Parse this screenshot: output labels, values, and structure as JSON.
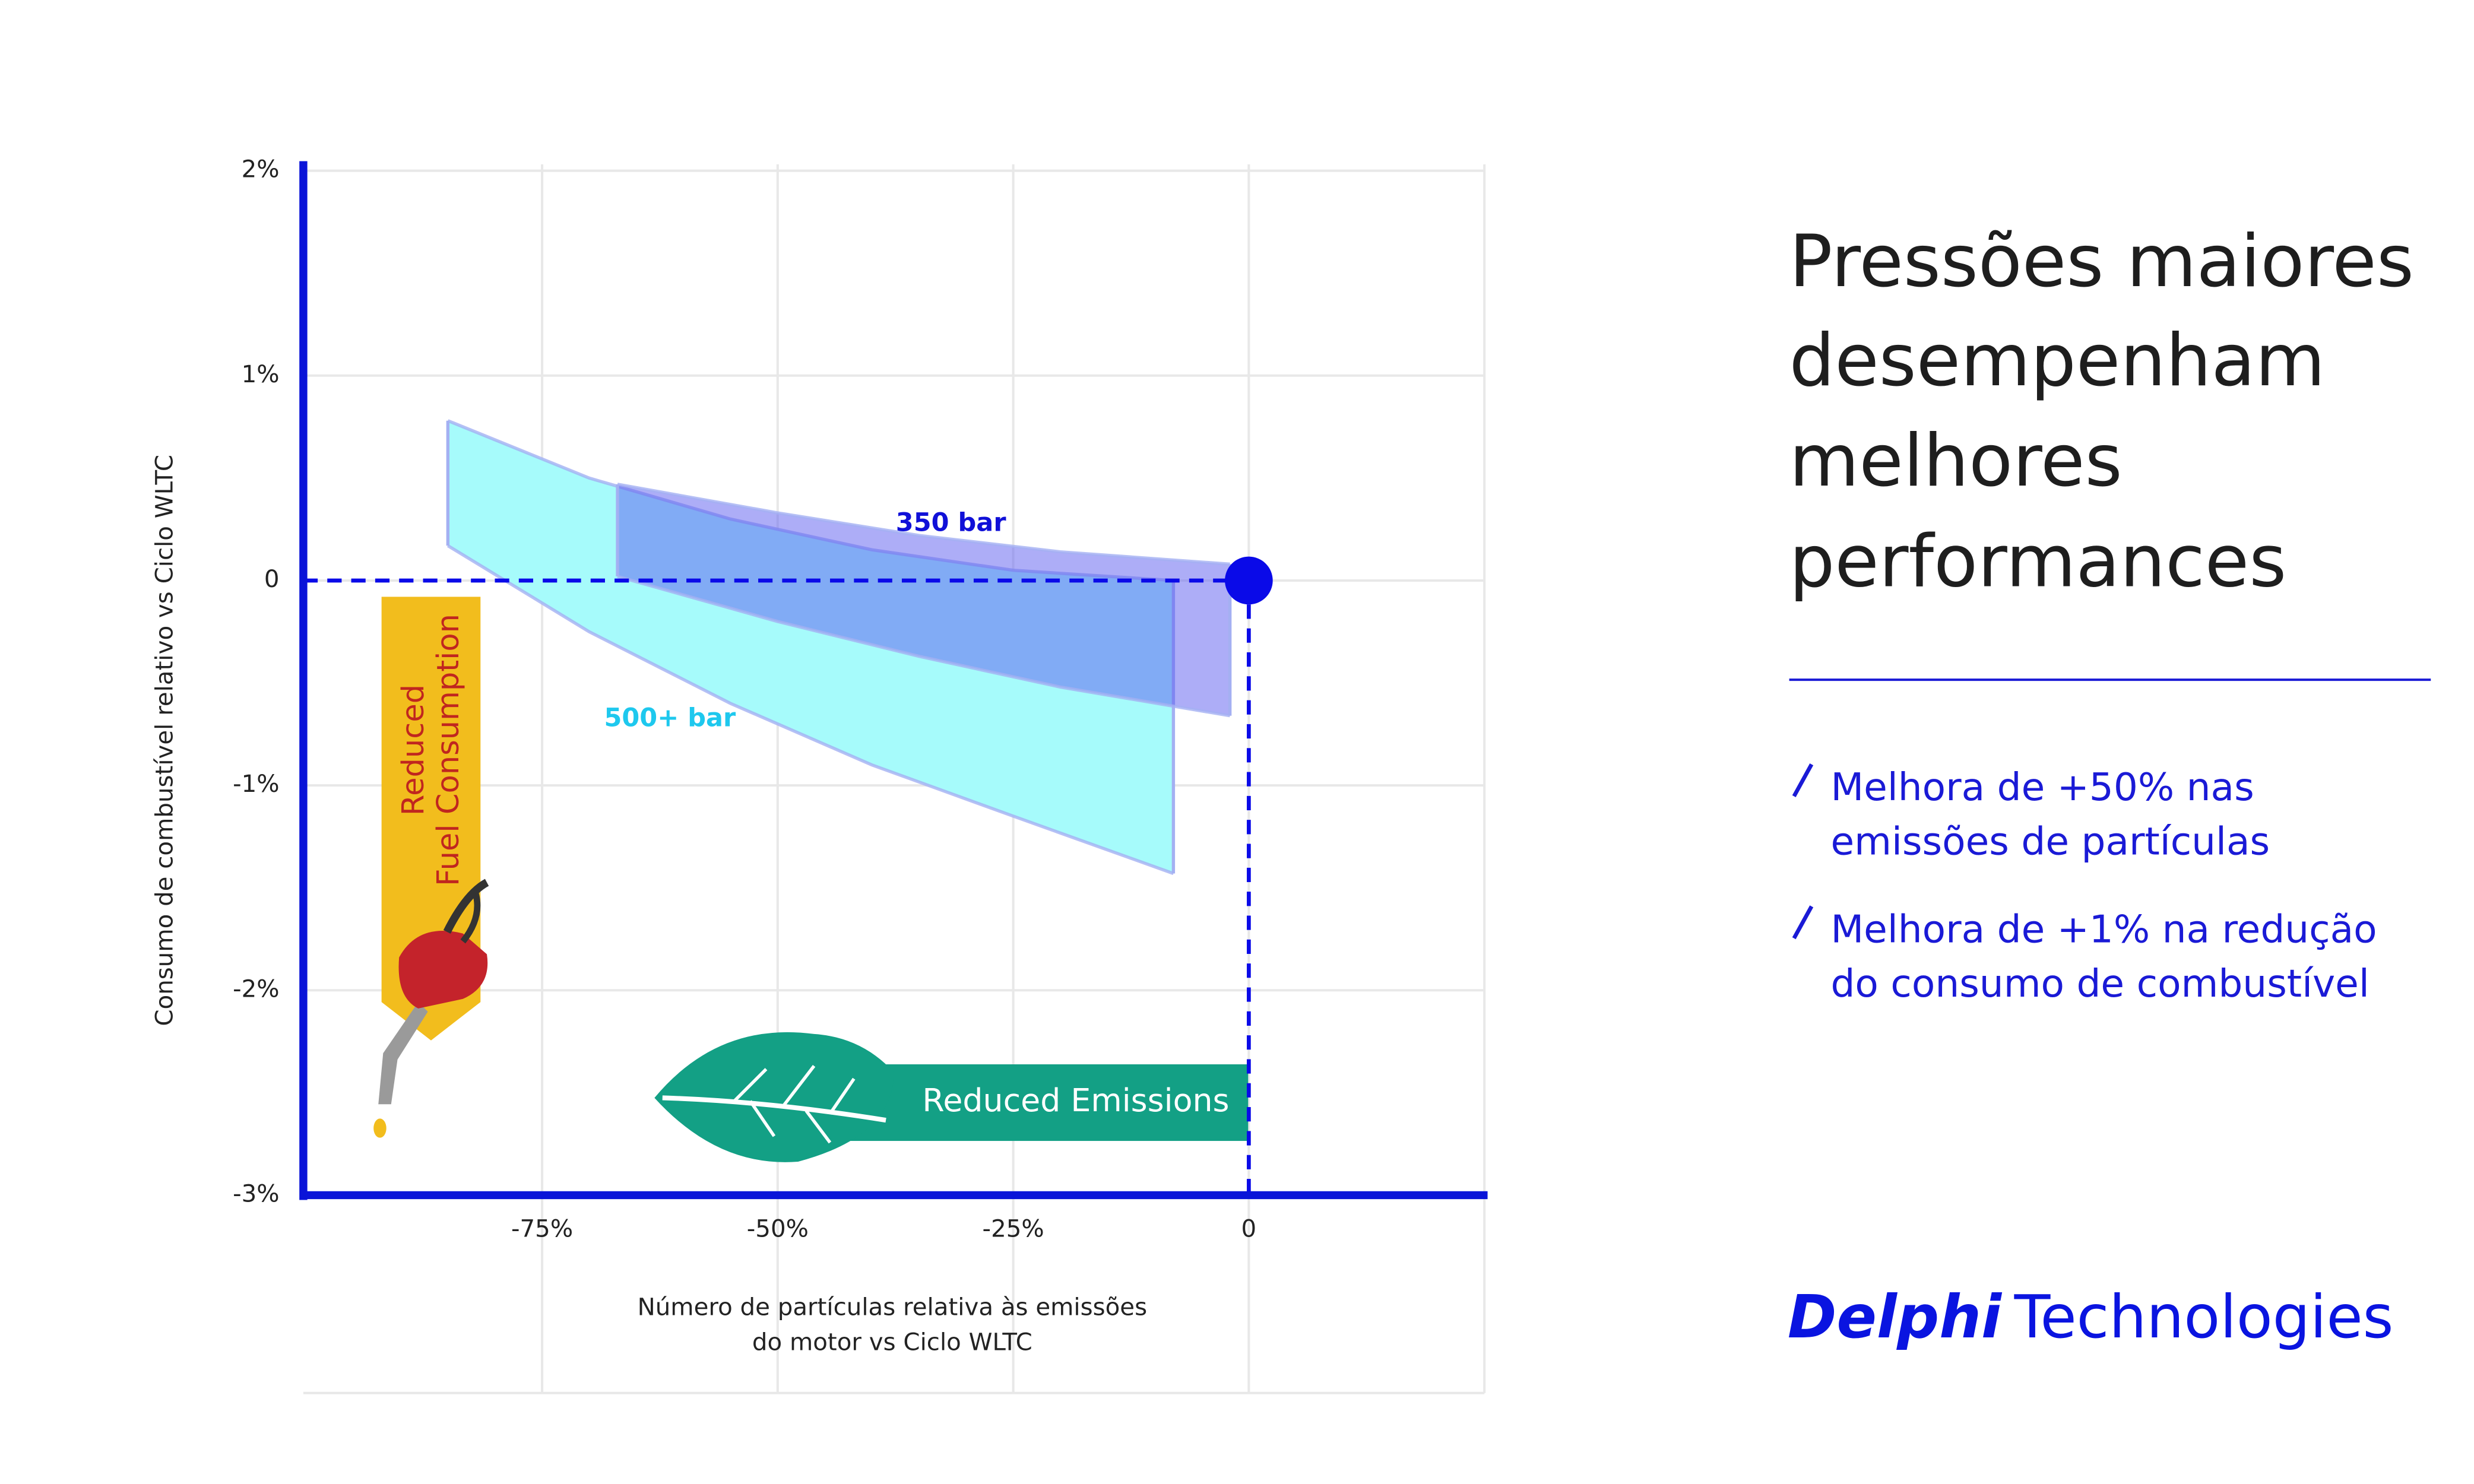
{
  "chart_data": {
    "type": "band",
    "xlabel": [
      "Número de partículas relativa às emissões",
      "do motor vs Ciclo WLTC"
    ],
    "ylabel": "Consumo de combustível relativo vs Ciclo WLTC",
    "xlim": [
      -100,
      25
    ],
    "xticks": [
      {
        "value": -75,
        "label": "-75%"
      },
      {
        "value": -50,
        "label": "-50%"
      },
      {
        "value": -25,
        "label": "-25%"
      },
      0
    ],
    "ylim": [
      -3,
      2
    ],
    "yticks": [
      {
        "value": 2,
        "label": "2%"
      },
      {
        "value": 1,
        "label": "1%"
      },
      0,
      {
        "value": -1,
        "label": "-1%"
      },
      {
        "value": -2,
        "label": "-2%"
      },
      {
        "value": -3,
        "label": "-3%"
      }
    ],
    "grid": true,
    "series": [
      {
        "name": "500+ bar",
        "color": "#a6fbfb",
        "label_color": "#1ec8ee",
        "x": [
          -85,
          -70,
          -55,
          -40,
          -25,
          -8
        ],
        "upper": [
          0.78,
          0.5,
          0.3,
          0.15,
          0.05,
          0.0
        ],
        "lower": [
          0.17,
          -0.25,
          -0.6,
          -0.9,
          -1.15,
          -1.43
        ]
      },
      {
        "name": "350 bar",
        "color": "#5b5cf0",
        "label_color": "#1010d8",
        "x": [
          -67,
          -50,
          -35,
          -20,
          -2
        ],
        "upper": [
          0.47,
          0.33,
          0.22,
          0.14,
          0.08
        ],
        "lower": [
          0.02,
          -0.2,
          -0.37,
          -0.52,
          -0.66
        ]
      }
    ],
    "reference_point": {
      "x": 0,
      "y": 0,
      "color": "#0a0ae8"
    },
    "annotations": [
      [
        "Reduced",
        "Fuel Consumption"
      ],
      [
        "Reduced Emissions"
      ]
    ]
  },
  "side_panel": {
    "title": [
      "Pressões maiores",
      "desempenham",
      "melhores",
      "performances"
    ],
    "bullets": [
      [
        "Melhora de +50% nas",
        "emissões de partículas"
      ],
      [
        "Melhora de +1% na redução",
        "do consumo de combustível"
      ]
    ],
    "logo": {
      "bold": "Delphi",
      "rest": "Technologies"
    }
  }
}
